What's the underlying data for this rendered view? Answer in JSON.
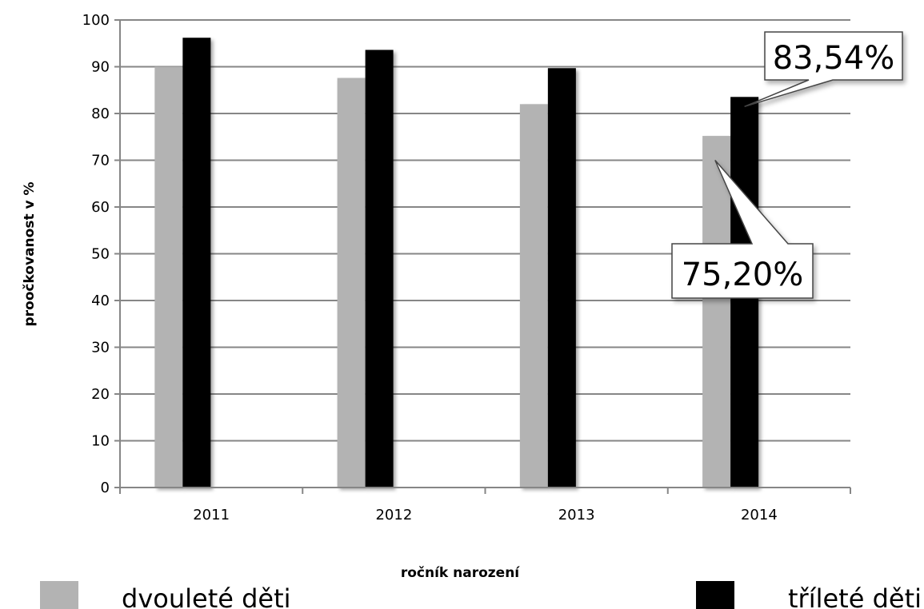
{
  "chart_data": {
    "type": "bar",
    "categories": [
      "2011",
      "2012",
      "2013",
      "2014"
    ],
    "series": [
      {
        "name": "dvouleté děti",
        "values": [
          90.0,
          87.6,
          82.0,
          75.2
        ],
        "color": "#b3b3b3"
      },
      {
        "name": "tříleté děti",
        "values": [
          96.2,
          93.6,
          89.7,
          83.54
        ],
        "color": "#000000"
      }
    ],
    "title": "",
    "xlabel": "ročník narození",
    "ylabel": "proočkovanost  v  %",
    "ylim": [
      0,
      100
    ],
    "yticks": [
      "0",
      "10",
      "20",
      "30",
      "40",
      "50",
      "60",
      "70",
      "80",
      "90",
      "100"
    ],
    "grid": true,
    "legend": "bottom",
    "annotations": [
      {
        "text": "83,54%",
        "category": "2014",
        "series": "tříleté děti"
      },
      {
        "text": "75,20%",
        "category": "2014",
        "series": "dvouleté děti"
      }
    ]
  }
}
